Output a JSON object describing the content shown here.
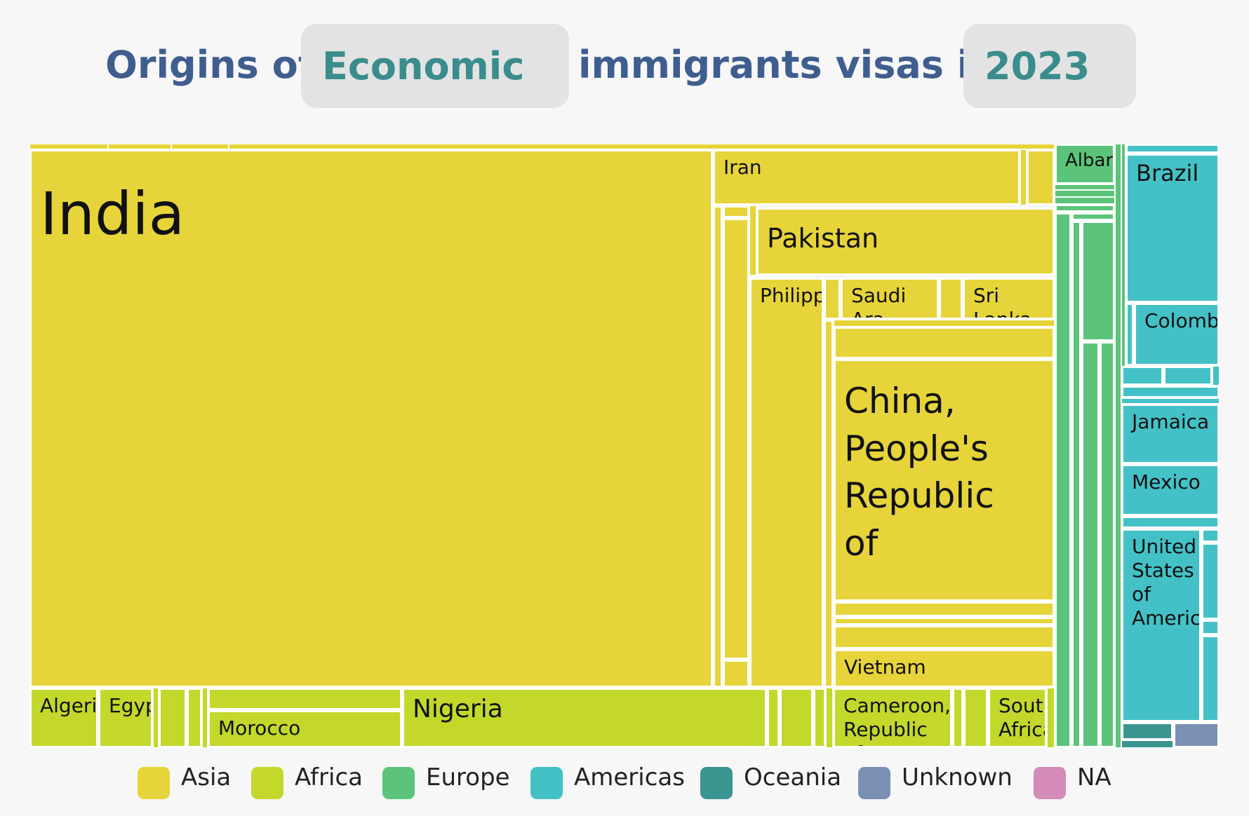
{
  "header": {
    "prefix": "Origins of",
    "category_select": "Economic",
    "middle": "immigrants visas in",
    "year_select": "2023"
  },
  "colors": {
    "Asia": "#e6d43a",
    "Africa": "#c4d72b",
    "Europe": "#5cc47a",
    "Americas": "#44c1c6",
    "Oceania": "#3a9490",
    "Unknown": "#7990b4",
    "NA": "#d48bb8"
  },
  "chart_data": {
    "type": "treemap",
    "title": "",
    "regions": [
      {
        "name": "Asia",
        "countries": [
          {
            "name": "India",
            "value": 47
          },
          {
            "name": "China, People's Republic of",
            "value": 6.2
          },
          {
            "name": "Philippines",
            "value": 2.4
          },
          {
            "name": "Pakistan",
            "value": 2.2
          },
          {
            "name": "Iran",
            "value": 1.9
          },
          {
            "name": "Vietnam",
            "value": 1.0
          },
          {
            "name": "Saudi Arabia",
            "value": 0.8
          },
          {
            "name": "Sri Lanka",
            "value": 0.7
          }
        ]
      },
      {
        "name": "Africa",
        "countries": [
          {
            "name": "Nigeria",
            "value": 2.5
          },
          {
            "name": "Morocco",
            "value": 0.9
          },
          {
            "name": "Cameroon, Republic of",
            "value": 0.8
          },
          {
            "name": "Algeria",
            "value": 0.5
          },
          {
            "name": "Egypt",
            "value": 0.4
          },
          {
            "name": "South Africa",
            "value": 0.4
          }
        ]
      },
      {
        "name": "Europe",
        "countries": [
          {
            "name": "Albania",
            "value": 0.4
          }
        ]
      },
      {
        "name": "Americas",
        "countries": [
          {
            "name": "Brazil",
            "value": 1.6
          },
          {
            "name": "United States of America",
            "value": 1.4
          },
          {
            "name": "Colombia",
            "value": 0.8
          },
          {
            "name": "Jamaica",
            "value": 0.6
          },
          {
            "name": "Mexico",
            "value": 0.5
          }
        ]
      }
    ],
    "legend": [
      "Asia",
      "Africa",
      "Europe",
      "Americas",
      "Oceania",
      "Unknown",
      "NA"
    ]
  },
  "treemap_labels": {
    "India": "India",
    "Iran": "Iran",
    "Pakistan": "Pakistan",
    "Philippines": "Philipp",
    "Saudi": "Saudi Ara",
    "SriLanka": "Sri Lanka",
    "China": "China,\nPeople's\nRepublic\nof",
    "Vietnam": "Vietnam",
    "Algeria": "Algeria",
    "Egypt": "Egyp",
    "Morocco": "Morocco",
    "Nigeria": "Nigeria",
    "Cameroon": "Cameroon,\nRepublic of",
    "SouthAfrica": "South\nAfrica",
    "Albania": "Albar",
    "Brazil": "Brazil",
    "Colombia": "Colombi",
    "Jamaica": "Jamaica",
    "Mexico": "Mexico",
    "USA": "United\nStates\nof\nAmerica"
  }
}
